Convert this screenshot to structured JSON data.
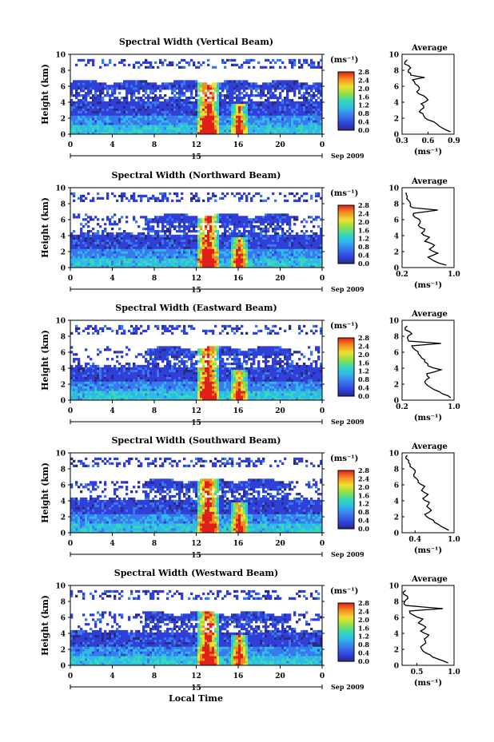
{
  "figure": {
    "xlabel": "Local Time",
    "date_day": "15",
    "date_month": "Sep 2009",
    "unit_label": "(ms⁻¹)",
    "avg_title": "Average"
  },
  "chart_data": [
    {
      "type": "heatmap",
      "title": "Spectral Width (Vertical Beam)",
      "xlabel": "Local Time",
      "ylabel": "Height (km)",
      "xlim": [
        0,
        24
      ],
      "ylim": [
        0,
        10
      ],
      "xticks": [
        "0",
        "4",
        "8",
        "12",
        "16",
        "20",
        "0"
      ],
      "yticks": [
        "0",
        "2",
        "4",
        "6",
        "8",
        "10"
      ],
      "colorbar": {
        "label": "(ms⁻¹)",
        "range": [
          0,
          2.8
        ],
        "ticks": [
          "0.0",
          "0.4",
          "0.8",
          "1.2",
          "1.6",
          "2.0",
          "2.4",
          "2.8"
        ]
      },
      "average_profile": {
        "title": "Average",
        "xlabel": "(ms⁻¹)",
        "xlim": [
          0.3,
          0.9
        ],
        "xticks": [
          "0.3",
          "0.6",
          "0.9"
        ],
        "yticks": [
          "0",
          "2",
          "4",
          "6",
          "8",
          "10"
        ],
        "height_km": [
          0.3,
          0.8,
          1.3,
          1.8,
          2.3,
          2.8,
          3.3,
          3.8,
          4.3,
          4.8,
          5.3,
          5.8,
          6.3,
          6.8,
          7.1,
          7.4,
          7.8,
          8.3,
          8.8,
          9.3
        ],
        "values": [
          0.86,
          0.76,
          0.7,
          0.6,
          0.55,
          0.5,
          0.55,
          0.52,
          0.6,
          0.55,
          0.47,
          0.5,
          0.45,
          0.42,
          0.56,
          0.4,
          0.37,
          0.4,
          0.33,
          0.36
        ]
      }
    },
    {
      "type": "heatmap",
      "title": "Spectral Width (Northward Beam)",
      "xlabel": "Local Time",
      "ylabel": "Height (km)",
      "xlim": [
        0,
        24
      ],
      "ylim": [
        0,
        10
      ],
      "xticks": [
        "0",
        "4",
        "8",
        "12",
        "16",
        "20",
        "0"
      ],
      "yticks": [
        "0",
        "2",
        "4",
        "6",
        "8",
        "10"
      ],
      "colorbar": {
        "label": "(ms⁻¹)",
        "range": [
          0,
          2.8
        ],
        "ticks": [
          "0.0",
          "0.4",
          "0.8",
          "1.2",
          "1.6",
          "2.0",
          "2.4",
          "2.8"
        ]
      },
      "average_profile": {
        "title": "Average",
        "xlabel": "(ms⁻¹)",
        "xlim": [
          0.2,
          1.0
        ],
        "xticks": [
          "0.2",
          "1.0"
        ],
        "yticks": [
          "0",
          "2",
          "4",
          "6",
          "8",
          "10"
        ],
        "height_km": [
          0.3,
          0.8,
          1.3,
          1.8,
          2.3,
          2.8,
          3.3,
          3.8,
          4.3,
          4.8,
          5.3,
          5.8,
          6.3,
          6.8,
          7.2,
          7.5,
          7.9,
          8.4,
          8.9,
          9.4
        ],
        "values": [
          0.88,
          0.7,
          0.6,
          0.75,
          0.62,
          0.7,
          0.55,
          0.62,
          0.5,
          0.55,
          0.45,
          0.48,
          0.4,
          0.38,
          0.75,
          0.36,
          0.33,
          0.3,
          0.28,
          0.26
        ]
      }
    },
    {
      "type": "heatmap",
      "title": "Spectral Width (Eastward Beam)",
      "xlabel": "Local Time",
      "ylabel": "Height (km)",
      "xlim": [
        0,
        24
      ],
      "ylim": [
        0,
        10
      ],
      "xticks": [
        "0",
        "4",
        "8",
        "12",
        "16",
        "20",
        "0"
      ],
      "yticks": [
        "0",
        "2",
        "4",
        "6",
        "8",
        "10"
      ],
      "colorbar": {
        "label": "(ms⁻¹)",
        "range": [
          0,
          2.8
        ],
        "ticks": [
          "0.0",
          "0.4",
          "0.8",
          "1.2",
          "1.6",
          "2.0",
          "2.4",
          "2.8"
        ]
      },
      "average_profile": {
        "title": "Average",
        "xlabel": "(ms⁻¹)",
        "xlim": [
          0.2,
          1.0
        ],
        "xticks": [
          "0.2",
          "1.0"
        ],
        "yticks": [
          "0",
          "2",
          "4",
          "6",
          "8",
          "10"
        ],
        "height_km": [
          0.3,
          0.8,
          1.3,
          1.8,
          2.3,
          2.8,
          3.3,
          3.8,
          4.3,
          4.8,
          5.3,
          5.8,
          6.3,
          6.8,
          7.1,
          7.4,
          7.8,
          8.3,
          8.8,
          9.3
        ],
        "values": [
          0.95,
          0.82,
          0.7,
          0.6,
          0.55,
          0.62,
          0.58,
          0.8,
          0.6,
          0.55,
          0.5,
          0.45,
          0.4,
          0.35,
          0.8,
          0.3,
          0.28,
          0.35,
          0.25,
          0.28
        ]
      }
    },
    {
      "type": "heatmap",
      "title": "Spectral Width (Southward Beam)",
      "xlabel": "Local Time",
      "ylabel": "Height (km)",
      "xlim": [
        0,
        24
      ],
      "ylim": [
        0,
        10
      ],
      "xticks": [
        "0",
        "4",
        "8",
        "12",
        "16",
        "20",
        "0"
      ],
      "yticks": [
        "0",
        "2",
        "4",
        "6",
        "8",
        "10"
      ],
      "colorbar": {
        "label": "(ms⁻¹)",
        "range": [
          0,
          2.8
        ],
        "ticks": [
          "0.0",
          "0.4",
          "0.8",
          "1.2",
          "1.6",
          "2.0",
          "2.4",
          "2.8"
        ]
      },
      "average_profile": {
        "title": "Average",
        "xlabel": "(ms⁻¹)",
        "xlim": [
          0.2,
          1.0
        ],
        "xticks": [
          "0.4",
          "1.0"
        ],
        "yticks": [
          "0",
          "2",
          "4",
          "6",
          "8",
          "10"
        ],
        "height_km": [
          0.3,
          0.8,
          1.3,
          1.8,
          2.3,
          2.8,
          3.3,
          3.8,
          4.3,
          4.8,
          5.3,
          5.8,
          6.3,
          6.8,
          7.3,
          7.8,
          8.3,
          8.8,
          9.3,
          9.7
        ],
        "values": [
          0.92,
          0.8,
          0.7,
          0.62,
          0.55,
          0.65,
          0.58,
          0.62,
          0.52,
          0.6,
          0.5,
          0.55,
          0.45,
          0.42,
          0.38,
          0.4,
          0.32,
          0.3,
          0.26,
          0.28
        ]
      }
    },
    {
      "type": "heatmap",
      "title": "Spectral Width (Westward Beam)",
      "xlabel": "Local Time",
      "ylabel": "Height (km)",
      "xlim": [
        0,
        24
      ],
      "ylim": [
        0,
        10
      ],
      "xticks": [
        "0",
        "4",
        "8",
        "12",
        "16",
        "20",
        "0"
      ],
      "yticks": [
        "0",
        "2",
        "4",
        "6",
        "8",
        "10"
      ],
      "colorbar": {
        "label": "(ms⁻¹)",
        "range": [
          0,
          2.8
        ],
        "ticks": [
          "0.0",
          "0.4",
          "0.8",
          "1.2",
          "1.6",
          "2.0",
          "2.4",
          "2.8"
        ]
      },
      "average_profile": {
        "title": "Average",
        "xlabel": "(ms⁻¹)",
        "xlim": [
          0.3,
          1.0
        ],
        "xticks": [
          "0.5",
          "1.0"
        ],
        "yticks": [
          "0",
          "2",
          "4",
          "6",
          "8",
          "10"
        ],
        "height_km": [
          0.3,
          0.8,
          1.3,
          1.8,
          2.3,
          2.8,
          3.3,
          3.8,
          4.3,
          4.8,
          5.3,
          5.8,
          6.3,
          6.8,
          7.1,
          7.5,
          7.9,
          8.4,
          8.9,
          9.4
        ],
        "values": [
          0.92,
          0.78,
          0.68,
          0.58,
          0.55,
          0.62,
          0.6,
          0.66,
          0.55,
          0.62,
          0.52,
          0.58,
          0.45,
          0.4,
          0.85,
          0.35,
          0.33,
          0.38,
          0.32,
          0.35
        ]
      }
    }
  ]
}
